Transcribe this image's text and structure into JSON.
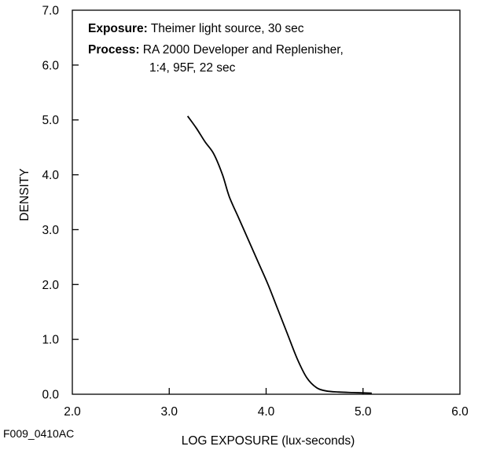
{
  "figure_id": "F009_0410AC",
  "annotations": {
    "exposure_label": "Exposure:",
    "exposure_text": "Theimer light source, 30 sec",
    "process_label": "Process:",
    "process_text": "RA 2000 Developer and Replenisher,",
    "process_text_2": "1:4, 95F, 22 sec"
  },
  "chart_data": {
    "type": "line",
    "xlabel": "LOG EXPOSURE (lux-seconds)",
    "ylabel": "DENSITY",
    "xlim": [
      2.0,
      6.0
    ],
    "ylim": [
      0.0,
      7.0
    ],
    "xticks": [
      "2.0",
      "3.0",
      "4.0",
      "5.0",
      "6.0"
    ],
    "yticks": [
      "0.0",
      "1.0",
      "2.0",
      "3.0",
      "4.0",
      "5.0",
      "6.0",
      "7.0"
    ],
    "grid": false,
    "series": [
      {
        "points": [
          [
            3.19,
            5.07
          ],
          [
            3.28,
            4.85
          ],
          [
            3.37,
            4.6
          ],
          [
            3.46,
            4.38
          ],
          [
            3.55,
            4.0
          ],
          [
            3.62,
            3.6
          ],
          [
            3.72,
            3.2
          ],
          [
            3.82,
            2.8
          ],
          [
            3.92,
            2.4
          ],
          [
            4.02,
            2.0
          ],
          [
            4.12,
            1.55
          ],
          [
            4.22,
            1.1
          ],
          [
            4.32,
            0.65
          ],
          [
            4.42,
            0.3
          ],
          [
            4.52,
            0.12
          ],
          [
            4.62,
            0.06
          ],
          [
            4.75,
            0.04
          ],
          [
            4.9,
            0.03
          ],
          [
            5.09,
            0.02
          ]
        ],
        "color": "#000000"
      }
    ]
  }
}
